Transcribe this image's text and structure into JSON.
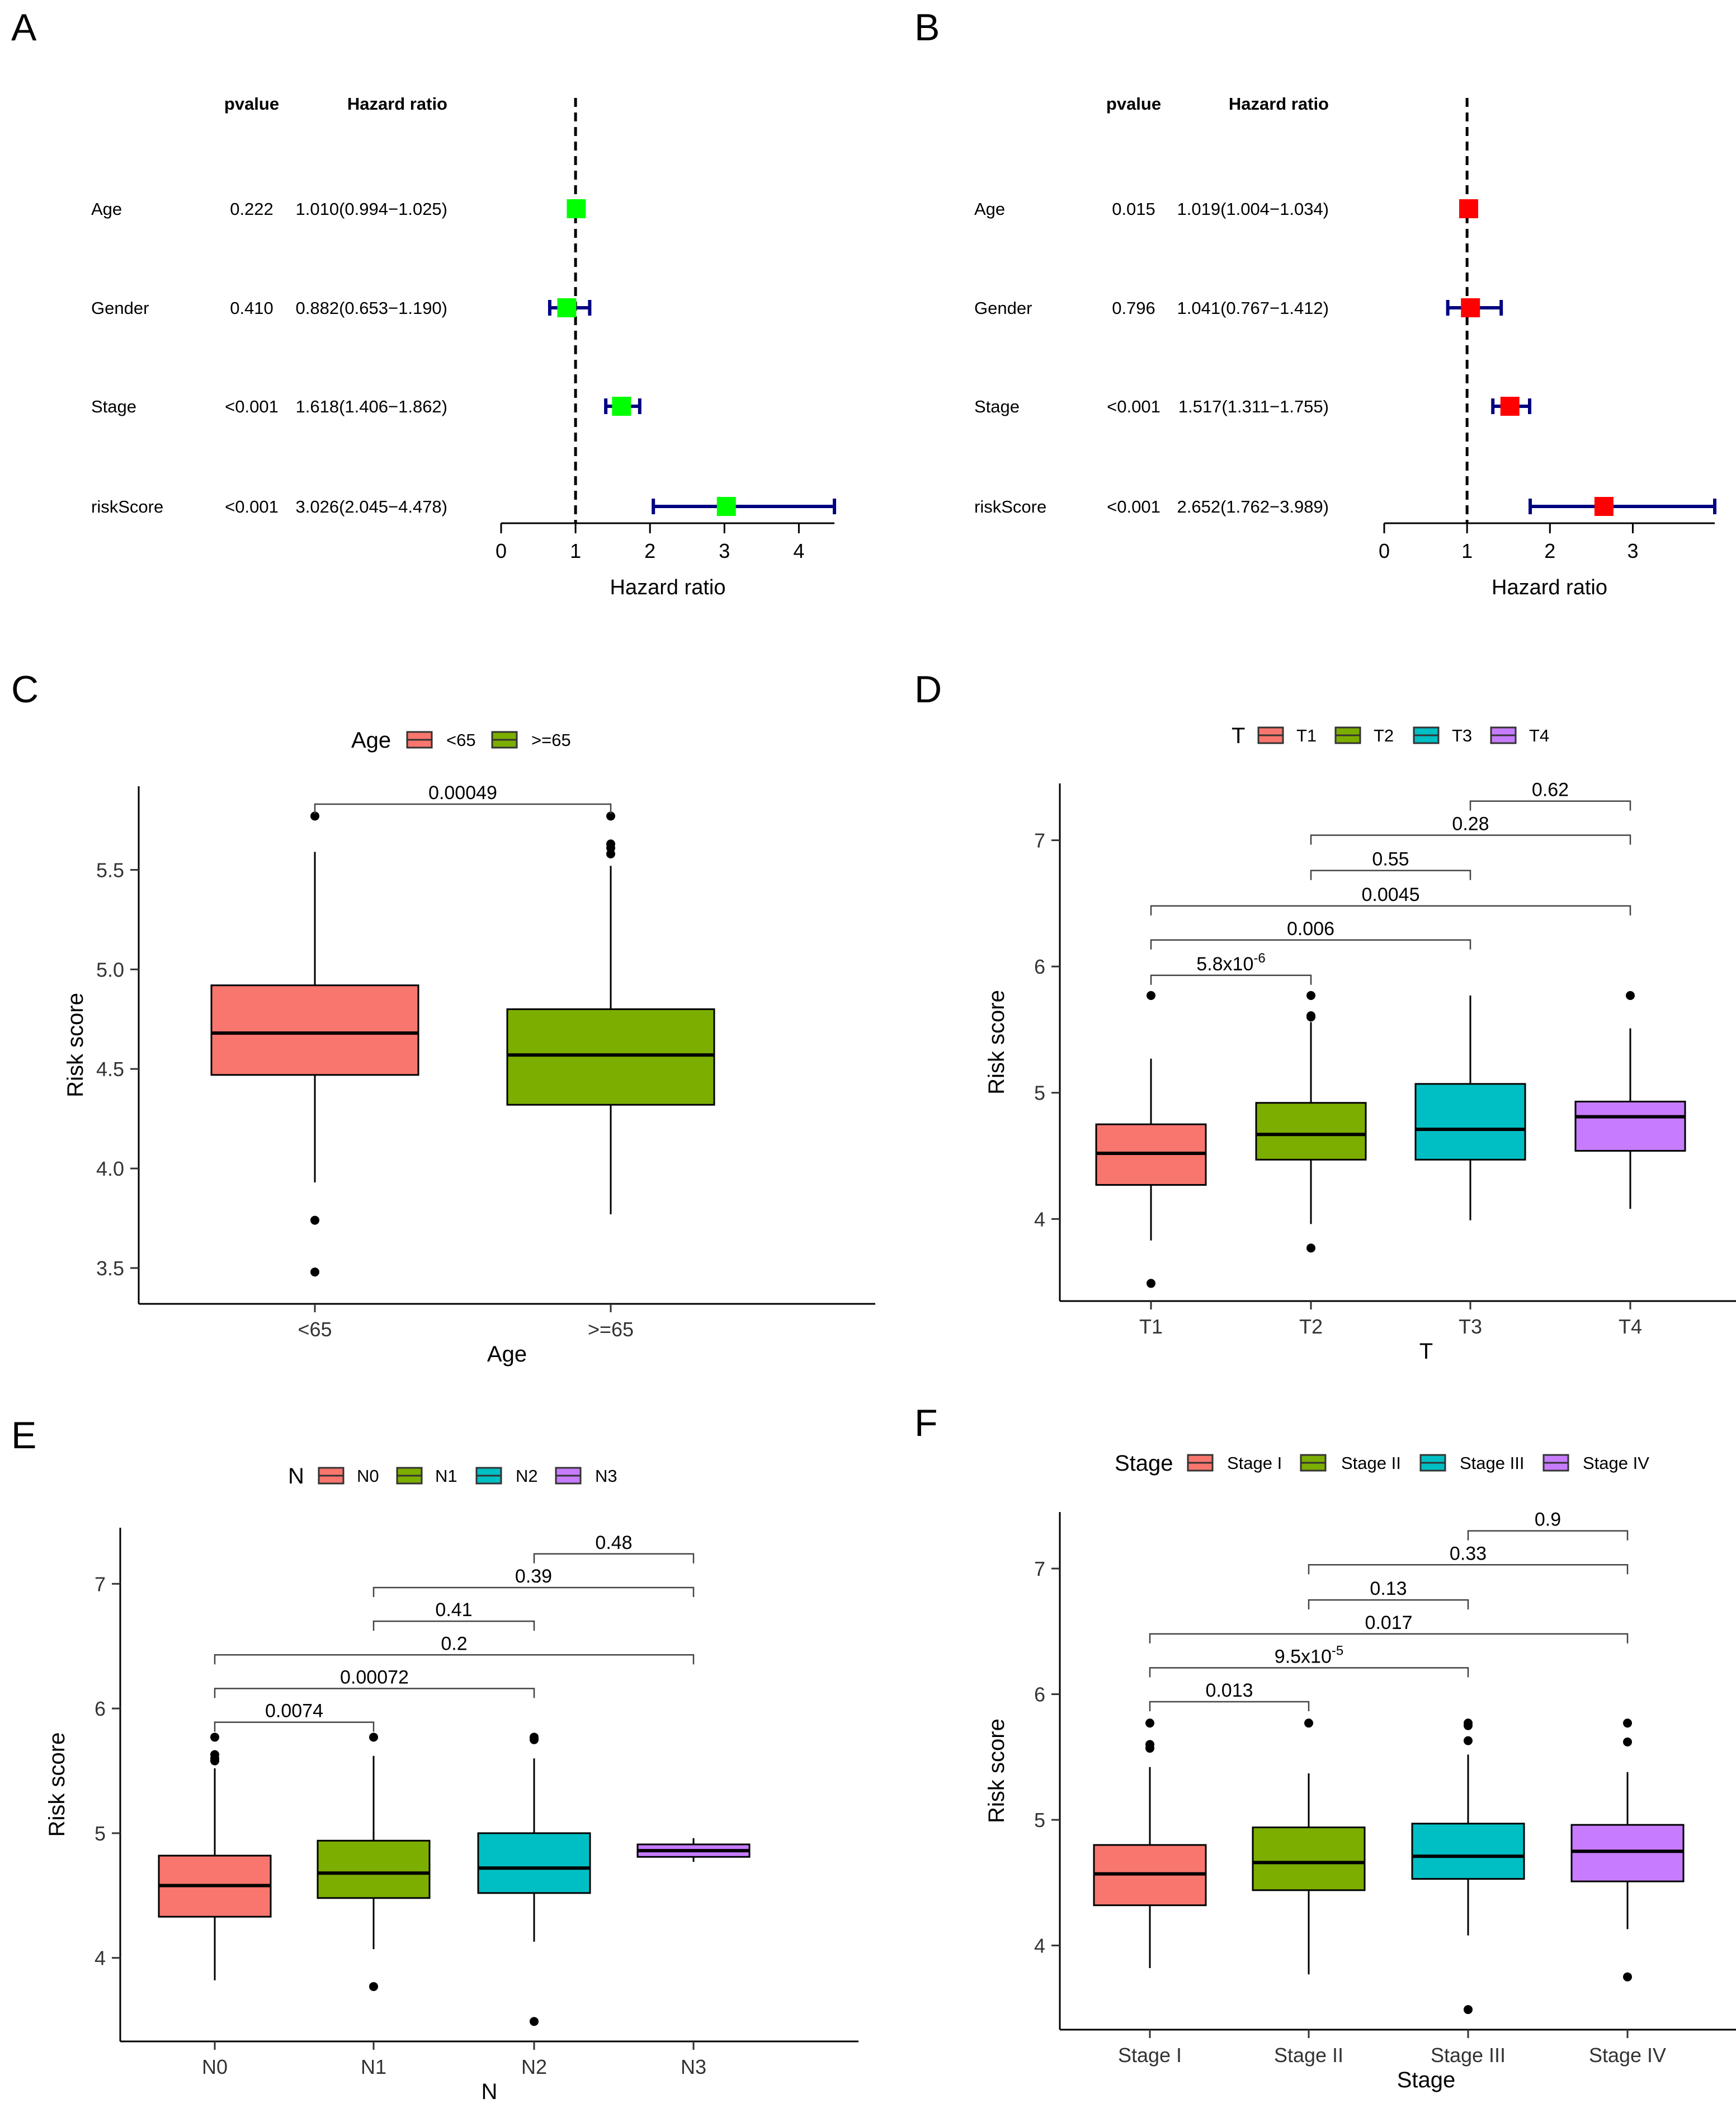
{
  "panel_labels": [
    "A",
    "B",
    "C",
    "D",
    "E",
    "F"
  ],
  "colors": {
    "forest_box_A": "#00FF00",
    "forest_box_B": "#FF0000",
    "ci_line": "#000080",
    "group1": "#F8766D",
    "group2": "#7CAE00",
    "group3": "#00BFC4",
    "group4": "#C77CFF"
  },
  "chart_data": [
    {
      "id": "A",
      "type": "forest",
      "col_headers": {
        "pvalue": "pvalue",
        "hr": "Hazard ratio"
      },
      "rows": [
        {
          "label": "Age",
          "pvalue": "0.222",
          "hr_text": "1.010(0.994−1.025)",
          "hr": 1.01,
          "lo": 0.994,
          "hi": 1.025
        },
        {
          "label": "Gender",
          "pvalue": "0.410",
          "hr_text": "0.882(0.653−1.190)",
          "hr": 0.882,
          "lo": 0.653,
          "hi": 1.19
        },
        {
          "label": "Stage",
          "pvalue": "<0.001",
          "hr_text": "1.618(1.406−1.862)",
          "hr": 1.618,
          "lo": 1.406,
          "hi": 1.862
        },
        {
          "label": "riskScore",
          "pvalue": "<0.001",
          "hr_text": "3.026(2.045−4.478)",
          "hr": 3.026,
          "lo": 2.045,
          "hi": 4.478
        }
      ],
      "xlim": [
        0,
        4.478
      ],
      "xticks": [
        "0",
        "1",
        "2",
        "3",
        "4"
      ],
      "ref_line": 1,
      "xlabel": "Hazard ratio"
    },
    {
      "id": "B",
      "type": "forest",
      "col_headers": {
        "pvalue": "pvalue",
        "hr": "Hazard ratio"
      },
      "rows": [
        {
          "label": "Age",
          "pvalue": "0.015",
          "hr_text": "1.019(1.004−1.034)",
          "hr": 1.019,
          "lo": 1.004,
          "hi": 1.034
        },
        {
          "label": "Gender",
          "pvalue": "0.796",
          "hr_text": "1.041(0.767−1.412)",
          "hr": 1.041,
          "lo": 0.767,
          "hi": 1.412
        },
        {
          "label": "Stage",
          "pvalue": "<0.001",
          "hr_text": "1.517(1.311−1.755)",
          "hr": 1.517,
          "lo": 1.311,
          "hi": 1.755
        },
        {
          "label": "riskScore",
          "pvalue": "<0.001",
          "hr_text": "2.652(1.762−3.989)",
          "hr": 2.652,
          "lo": 1.762,
          "hi": 3.989
        }
      ],
      "xlim": [
        0,
        3.989
      ],
      "xticks": [
        "0",
        "1",
        "2",
        "3"
      ],
      "ref_line": 1,
      "xlabel": "Hazard ratio"
    },
    {
      "id": "C",
      "type": "box",
      "legend_title": "Age",
      "groups": [
        "<65",
        ">=65"
      ],
      "boxes": [
        {
          "q1": 4.47,
          "median": 4.68,
          "q3": 4.92,
          "wlo": 3.93,
          "whi": 5.59,
          "outliers": [
            5.77,
            3.74,
            3.48
          ]
        },
        {
          "q1": 4.32,
          "median": 4.57,
          "q3": 4.8,
          "wlo": 3.77,
          "whi": 5.52,
          "outliers": [
            5.77,
            5.63,
            5.61,
            5.58
          ]
        }
      ],
      "ylim": [
        3.32,
        5.92
      ],
      "yticks": [
        "3.5",
        "4.0",
        "4.5",
        "5.0",
        "5.5"
      ],
      "xlabel": "Age",
      "ylabel": "Risk score",
      "comparisons": [
        {
          "from": 1,
          "to": 2,
          "y": 5.83,
          "label": "0.00049"
        }
      ]
    },
    {
      "id": "D",
      "type": "box",
      "legend_title": "T",
      "groups": [
        "T1",
        "T2",
        "T3",
        "T4"
      ],
      "boxes": [
        {
          "q1": 4.27,
          "median": 4.52,
          "q3": 4.75,
          "wlo": 3.83,
          "whi": 5.27,
          "outliers": [
            5.77,
            3.49
          ]
        },
        {
          "q1": 4.47,
          "median": 4.67,
          "q3": 4.92,
          "wlo": 3.96,
          "whi": 5.56,
          "outliers": [
            5.77,
            5.61,
            5.6,
            3.77
          ]
        },
        {
          "q1": 4.47,
          "median": 4.71,
          "q3": 5.07,
          "wlo": 3.99,
          "whi": 5.77,
          "outliers": []
        },
        {
          "q1": 4.54,
          "median": 4.81,
          "q3": 4.93,
          "wlo": 4.08,
          "whi": 5.51,
          "outliers": [
            5.77
          ]
        }
      ],
      "ylim": [
        3.35,
        7.45
      ],
      "yticks": [
        "4",
        "5",
        "6",
        "7"
      ],
      "xlabel": "T",
      "ylabel": "Risk score",
      "comparisons": [
        {
          "from": 1,
          "to": 2,
          "y": 5.93,
          "label": "5.8x10",
          "exp": "-6"
        },
        {
          "from": 1,
          "to": 3,
          "y": 6.21,
          "label": "0.006"
        },
        {
          "from": 1,
          "to": 4,
          "y": 6.48,
          "label": "0.0045"
        },
        {
          "from": 2,
          "to": 3,
          "y": 6.76,
          "label": "0.55"
        },
        {
          "from": 2,
          "to": 4,
          "y": 7.04,
          "label": "0.28"
        },
        {
          "from": 3,
          "to": 4,
          "y": 7.31,
          "label": "0.62"
        }
      ]
    },
    {
      "id": "E",
      "type": "box",
      "legend_title": "N",
      "groups": [
        "N0",
        "N1",
        "N2",
        "N3"
      ],
      "boxes": [
        {
          "q1": 4.33,
          "median": 4.58,
          "q3": 4.82,
          "wlo": 3.82,
          "whi": 5.52,
          "outliers": [
            5.77,
            5.63,
            5.6,
            5.58
          ]
        },
        {
          "q1": 4.48,
          "median": 4.68,
          "q3": 4.94,
          "wlo": 4.07,
          "whi": 5.62,
          "outliers": [
            5.77,
            3.77
          ]
        },
        {
          "q1": 4.52,
          "median": 4.72,
          "q3": 5.0,
          "wlo": 4.13,
          "whi": 5.6,
          "outliers": [
            5.77,
            5.75,
            3.49
          ]
        },
        {
          "q1": 4.81,
          "median": 4.86,
          "q3": 4.91,
          "wlo": 4.77,
          "whi": 4.96,
          "outliers": []
        }
      ],
      "ylim": [
        3.33,
        7.45
      ],
      "yticks": [
        "4",
        "5",
        "6",
        "7"
      ],
      "xlabel": "N",
      "ylabel": "Risk score",
      "comparisons": [
        {
          "from": 1,
          "to": 2,
          "y": 5.89,
          "label": "0.0074"
        },
        {
          "from": 1,
          "to": 3,
          "y": 6.16,
          "label": "0.00072"
        },
        {
          "from": 1,
          "to": 4,
          "y": 6.43,
          "label": "0.2"
        },
        {
          "from": 2,
          "to": 3,
          "y": 6.7,
          "label": "0.41"
        },
        {
          "from": 2,
          "to": 4,
          "y": 6.97,
          "label": "0.39"
        },
        {
          "from": 3,
          "to": 4,
          "y": 7.24,
          "label": "0.48"
        }
      ]
    },
    {
      "id": "F",
      "type": "box",
      "legend_title": "Stage",
      "groups": [
        "Stage I",
        "Stage II",
        "Stage III",
        "Stage IV"
      ],
      "boxes": [
        {
          "q1": 4.32,
          "median": 4.57,
          "q3": 4.8,
          "wlo": 3.82,
          "whi": 5.42,
          "outliers": [
            5.77,
            5.6,
            5.57
          ]
        },
        {
          "q1": 4.44,
          "median": 4.66,
          "q3": 4.94,
          "wlo": 3.77,
          "whi": 5.37,
          "outliers": [
            5.77
          ]
        },
        {
          "q1": 4.53,
          "median": 4.71,
          "q3": 4.97,
          "wlo": 4.08,
          "whi": 5.52,
          "outliers": [
            5.77,
            5.75,
            5.63,
            3.49
          ]
        },
        {
          "q1": 4.51,
          "median": 4.75,
          "q3": 4.96,
          "wlo": 4.13,
          "whi": 5.38,
          "outliers": [
            5.77,
            5.62,
            3.75
          ]
        }
      ],
      "ylim": [
        3.33,
        7.45
      ],
      "yticks": [
        "4",
        "5",
        "6",
        "7"
      ],
      "xlabel": "Stage",
      "ylabel": "Risk score",
      "comparisons": [
        {
          "from": 1,
          "to": 2,
          "y": 5.94,
          "label": "0.013"
        },
        {
          "from": 1,
          "to": 3,
          "y": 6.21,
          "label": "9.5x10",
          "exp": "-5"
        },
        {
          "from": 1,
          "to": 4,
          "y": 6.48,
          "label": "0.017"
        },
        {
          "from": 2,
          "to": 3,
          "y": 6.75,
          "label": "0.13"
        },
        {
          "from": 2,
          "to": 4,
          "y": 7.03,
          "label": "0.33"
        },
        {
          "from": 3,
          "to": 4,
          "y": 7.3,
          "label": "0.9"
        }
      ]
    }
  ]
}
